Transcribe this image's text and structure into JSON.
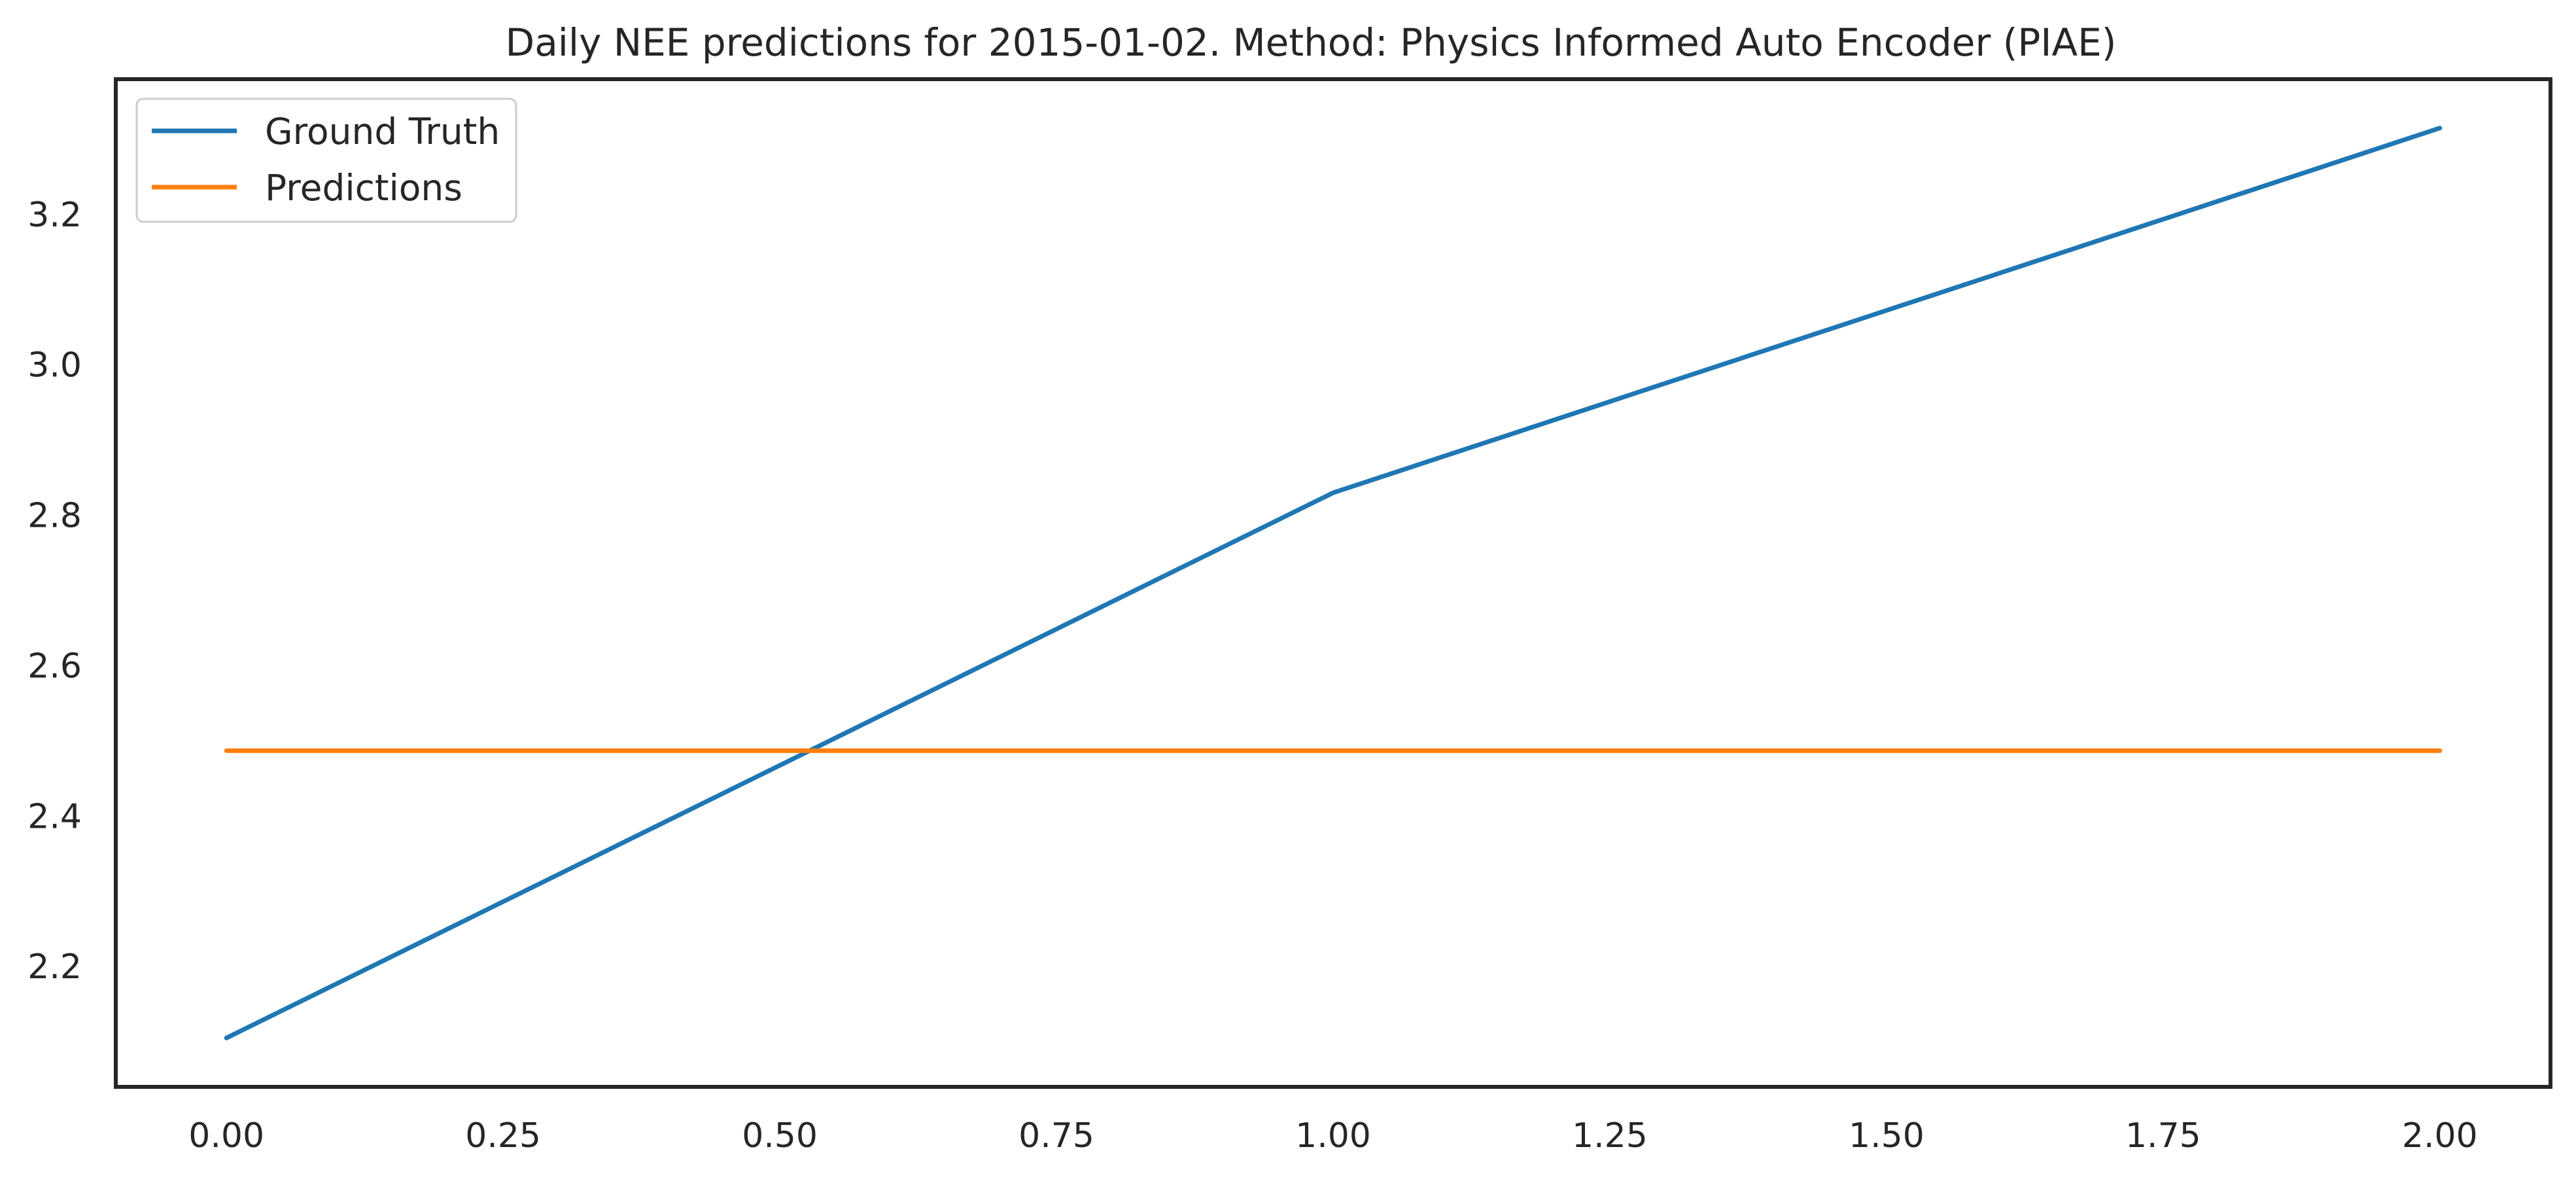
{
  "chart_data": {
    "type": "line",
    "title": "Daily NEE predictions for 2015-01-02. Method: Physics Informed Auto Encoder (PIAE)",
    "xlabel": "",
    "ylabel": "",
    "x": [
      0,
      1,
      2
    ],
    "series": [
      {
        "name": "Ground Truth",
        "color": "#1f77b4",
        "values": [
          2.105,
          2.83,
          3.315
        ]
      },
      {
        "name": "Predictions",
        "color": "#ff7f0e",
        "values": [
          2.487,
          2.487,
          2.487
        ]
      }
    ],
    "xlim": [
      -0.1,
      2.1
    ],
    "ylim": [
      2.04,
      3.38
    ],
    "xticks": [
      "0.00",
      "0.25",
      "0.50",
      "0.75",
      "1.00",
      "1.25",
      "1.50",
      "1.75",
      "2.00"
    ],
    "yticks": [
      "2.2",
      "2.4",
      "2.6",
      "2.8",
      "3.0",
      "3.2"
    ],
    "grid": false,
    "legend_position": "top-left"
  }
}
